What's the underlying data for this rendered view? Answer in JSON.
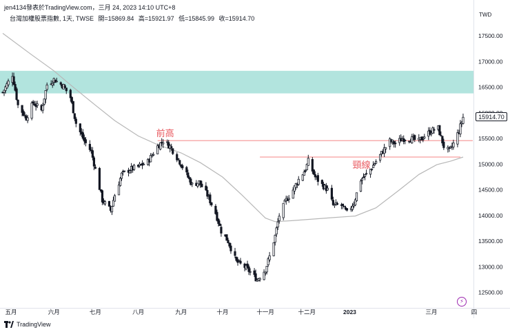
{
  "header": {
    "author_line": "jen4134發表於TradingView.com，三月 24, 2023 14:10 UTC+8"
  },
  "symbol": {
    "name": "台灣加權股票指數, 1天, TWSE",
    "open": "開=15869.84",
    "high": "高=15921.97",
    "low": "低=15845.99",
    "close": "收=15914.70"
  },
  "currency": "TWD",
  "last_price_label": "15914.70",
  "footer": {
    "brand": "TradingView"
  },
  "colors": {
    "zone": "#b2e4de",
    "level_line": "#f48484",
    "annotation": "#e8595f",
    "moving_average": "#b7b7b7",
    "candle": "#131722"
  },
  "chart_data": {
    "type": "candlestick",
    "title": "台灣加權股票指數, 1天, TWSE",
    "ylabel": "TWD",
    "ylim": [
      12200,
      18200
    ],
    "y_ticks": [
      "17500.00",
      "17000.00",
      "16500.00",
      "16000.00",
      "15500.00",
      "15000.00",
      "14500.00",
      "14000.00",
      "13500.00",
      "13000.00",
      "12500.00"
    ],
    "x_ticks": [
      "五月",
      "六月",
      "七月",
      "八月",
      "九月",
      "十月",
      "十一月",
      "十二月",
      "2023",
      "三月",
      "四"
    ],
    "last_price": 15914.7,
    "resistance_zone": {
      "from": 16380,
      "to": 16820
    },
    "levels": [
      {
        "label": "前高",
        "value": 15460
      },
      {
        "label": "頸線",
        "value": 15140
      }
    ],
    "ma_path": [
      [
        "2022-04-25",
        17550
      ],
      [
        "2022-05-15",
        17150
      ],
      [
        "2022-06-01",
        16820
      ],
      [
        "2022-06-15",
        16500
      ],
      [
        "2022-07-01",
        16150
      ],
      [
        "2022-07-15",
        15850
      ],
      [
        "2022-08-01",
        15550
      ],
      [
        "2022-08-15",
        15380
      ],
      [
        "2022-09-01",
        15220
      ],
      [
        "2022-09-15",
        15030
      ],
      [
        "2022-10-01",
        14750
      ],
      [
        "2022-10-15",
        14400
      ],
      [
        "2022-11-01",
        13950
      ],
      [
        "2022-11-08",
        13880
      ],
      [
        "2022-11-20",
        13900
      ],
      [
        "2022-12-05",
        13930
      ],
      [
        "2022-12-20",
        13960
      ],
      [
        "2023-01-05",
        13990
      ],
      [
        "2023-01-20",
        14150
      ],
      [
        "2023-02-05",
        14480
      ],
      [
        "2023-02-20",
        14800
      ],
      [
        "2023-03-05",
        14990
      ],
      [
        "2023-03-15",
        15060
      ],
      [
        "2023-03-24",
        15140
      ]
    ],
    "price_path": [
      [
        "2022-04-25",
        16400
      ],
      [
        "2022-05-02",
        16750
      ],
      [
        "2022-05-06",
        16150
      ],
      [
        "2022-05-12",
        15900
      ],
      [
        "2022-05-17",
        16200
      ],
      [
        "2022-05-23",
        16050
      ],
      [
        "2022-05-27",
        16550
      ],
      [
        "2022-06-01",
        16650
      ],
      [
        "2022-06-08",
        16520
      ],
      [
        "2022-06-13",
        16300
      ],
      [
        "2022-06-17",
        15800
      ],
      [
        "2022-06-23",
        15450
      ],
      [
        "2022-06-28",
        15250
      ],
      [
        "2022-07-01",
        14900
      ],
      [
        "2022-07-06",
        14300
      ],
      [
        "2022-07-12",
        14100
      ],
      [
        "2022-07-15",
        14400
      ],
      [
        "2022-07-20",
        14800
      ],
      [
        "2022-07-26",
        14900
      ],
      [
        "2022-08-01",
        14950
      ],
      [
        "2022-08-08",
        15050
      ],
      [
        "2022-08-15",
        15350
      ],
      [
        "2022-08-19",
        15460
      ],
      [
        "2022-08-24",
        15350
      ],
      [
        "2022-08-31",
        15050
      ],
      [
        "2022-09-05",
        14800
      ],
      [
        "2022-09-09",
        14600
      ],
      [
        "2022-09-14",
        14650
      ],
      [
        "2022-09-20",
        14400
      ],
      [
        "2022-09-26",
        14050
      ],
      [
        "2022-09-30",
        13700
      ],
      [
        "2022-10-05",
        13500
      ],
      [
        "2022-10-11",
        13100
      ],
      [
        "2022-10-17",
        13000
      ],
      [
        "2022-10-21",
        12900
      ],
      [
        "2022-10-26",
        12750
      ],
      [
        "2022-11-01",
        12950
      ],
      [
        "2022-11-04",
        13200
      ],
      [
        "2022-11-08",
        13600
      ],
      [
        "2022-11-11",
        14000
      ],
      [
        "2022-11-16",
        14300
      ],
      [
        "2022-11-21",
        14500
      ],
      [
        "2022-11-25",
        14700
      ],
      [
        "2022-11-30",
        14900
      ],
      [
        "2022-12-02",
        15060
      ],
      [
        "2022-12-07",
        14750
      ],
      [
        "2022-12-12",
        14600
      ],
      [
        "2022-12-16",
        14500
      ],
      [
        "2022-12-20",
        14200
      ],
      [
        "2022-12-26",
        14200
      ],
      [
        "2022-12-30",
        14050
      ],
      [
        "2023-01-04",
        14250
      ],
      [
        "2023-01-09",
        14700
      ],
      [
        "2023-01-13",
        14800
      ],
      [
        "2023-01-16",
        14900
      ],
      [
        "2023-01-30",
        15450
      ],
      [
        "2023-02-03",
        15400
      ],
      [
        "2023-02-08",
        15500
      ],
      [
        "2023-02-14",
        15500
      ],
      [
        "2023-02-20",
        15450
      ],
      [
        "2023-02-24",
        15550
      ],
      [
        "2023-03-01",
        15650
      ],
      [
        "2023-03-06",
        15700
      ],
      [
        "2023-03-10",
        15350
      ],
      [
        "2023-03-14",
        15250
      ],
      [
        "2023-03-17",
        15400
      ],
      [
        "2023-03-21",
        15650
      ],
      [
        "2023-03-24",
        15914.7
      ]
    ]
  }
}
